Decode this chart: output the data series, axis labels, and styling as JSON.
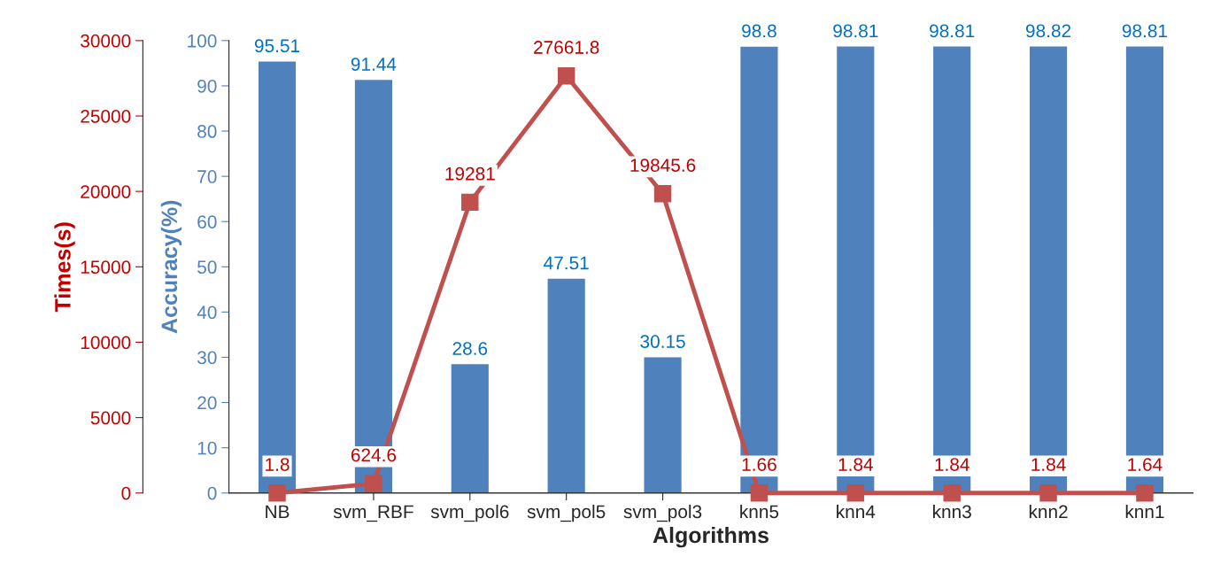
{
  "chart_data": {
    "type": "bar",
    "xlabel": "Algorithms",
    "ylabel": "Accuracy(%)",
    "y2label": "Times(s)",
    "categories": [
      "NB",
      "svm_RBF",
      "svm_pol6",
      "svm_pol5",
      "svm_pol3",
      "knn5",
      "knn4",
      "knn3",
      "knn2",
      "knn1"
    ],
    "series": [
      {
        "color": "#4f81bd",
        "values": [
          95.51,
          91.44,
          28.6,
          47.51,
          30.15,
          98.8,
          98.81,
          98.81,
          98.82,
          98.81
        ]
      },
      {
        "type": "line",
        "axis": "y2",
        "color": "#c0504d",
        "marker": "square",
        "values": [
          1.8,
          624.6,
          19281,
          27661.8,
          19845.6,
          1.66,
          1.84,
          1.84,
          1.84,
          1.64
        ]
      }
    ],
    "ylim": [
      0,
      100
    ],
    "yticks": [
      0,
      10,
      20,
      30,
      40,
      50,
      60,
      70,
      80,
      90,
      100
    ],
    "y2lim": [
      0,
      30000
    ],
    "y2ticks": [
      0,
      5000,
      10000,
      15000,
      20000,
      25000,
      30000
    ],
    "data_labels": true,
    "grid": false,
    "legend": false
  }
}
